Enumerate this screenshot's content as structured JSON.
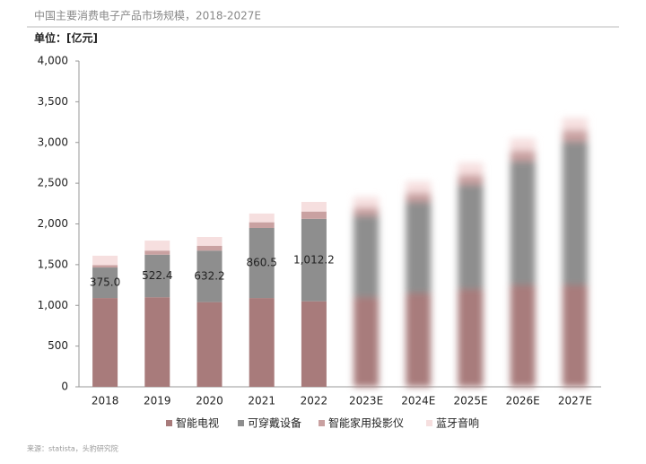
{
  "chart_data": {
    "type": "stacked_bar",
    "title": "中国主要消费电子产品市场规模，2018-2027E",
    "unit_label": "单位：[亿元]",
    "source": "来源：statista，头豹研究院",
    "categories": [
      "2018",
      "2019",
      "2020",
      "2021",
      "2022",
      "2023E",
      "2024E",
      "2025E",
      "2026E",
      "2027E"
    ],
    "series": [
      {
        "name": "智能电视",
        "color": "#a87b7b",
        "values": [
          1090,
          1100,
          1040,
          1090,
          1050,
          1100,
          1150,
          1200,
          1250,
          1250
        ]
      },
      {
        "name": "可穿戴设备",
        "color": "#8e8e8e",
        "values": [
          375.0,
          522.4,
          632.2,
          860.5,
          1012.2,
          1000,
          1120,
          1280,
          1520,
          1760
        ],
        "value_labels": [
          "375.0",
          "522.4",
          "632.2",
          "860.5",
          "1,012.2",
          null,
          null,
          null,
          null,
          null
        ]
      },
      {
        "name": "智能家用投影仪",
        "color": "#c9a1a1",
        "values": [
          30,
          50,
          60,
          70,
          90,
          100,
          110,
          120,
          130,
          140
        ]
      },
      {
        "name": "蓝牙音响",
        "color": "#f6dfdf",
        "values": [
          115,
          123,
          108,
          107,
          118,
          130,
          140,
          150,
          150,
          150
        ]
      }
    ],
    "ylim": [
      0,
      4000
    ],
    "yticks": [
      0,
      500,
      {
        "value": 1000,
        "label": "1,000"
      },
      {
        "value": 1500,
        "label": "1,500"
      },
      {
        "value": 2000,
        "label": "2,000"
      },
      {
        "value": 2500,
        "label": "2,500"
      },
      {
        "value": 3000,
        "label": "3,000"
      },
      {
        "value": 3500,
        "label": "3,500"
      },
      {
        "value": 4000,
        "label": "4,000"
      }
    ],
    "blurred_from": 5,
    "legend": "bottom"
  }
}
